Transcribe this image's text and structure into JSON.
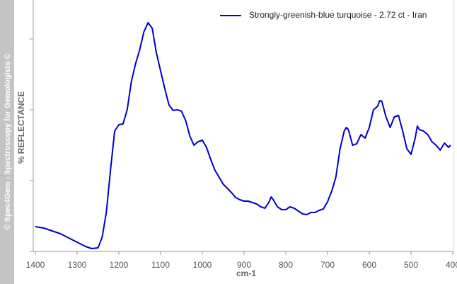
{
  "watermark": "© Spec4Gem - Spectroscopy for Gemologists ©",
  "chart_data": {
    "type": "line",
    "y_label": "% REFLECTANCE",
    "x_label": "cm-1",
    "xlim": [
      1400,
      400
    ],
    "xticks": [
      1400,
      1300,
      1200,
      1100,
      1000,
      900,
      800,
      700,
      600,
      500,
      400
    ],
    "ylim": [
      0,
      3.55
    ],
    "legend": "top-right",
    "x": [
      1400,
      1380,
      1360,
      1340,
      1320,
      1300,
      1280,
      1265,
      1250,
      1240,
      1230,
      1220,
      1210,
      1200,
      1190,
      1180,
      1170,
      1160,
      1150,
      1140,
      1130,
      1120,
      1110,
      1100,
      1090,
      1080,
      1070,
      1060,
      1050,
      1040,
      1030,
      1020,
      1010,
      1000,
      990,
      980,
      970,
      960,
      950,
      940,
      930,
      920,
      910,
      900,
      890,
      880,
      870,
      860,
      850,
      840,
      835,
      830,
      820,
      810,
      800,
      790,
      780,
      770,
      760,
      750,
      740,
      730,
      720,
      710,
      700,
      690,
      680,
      670,
      660,
      655,
      650,
      640,
      630,
      620,
      610,
      600,
      590,
      580,
      575,
      570,
      560,
      550,
      540,
      530,
      520,
      510,
      500,
      490,
      485,
      480,
      470,
      460,
      450,
      440,
      430,
      420,
      410,
      405
    ],
    "series": [
      {
        "name": "Strongly-greenish-blue turquoise - 2.72 ct - Iran",
        "color": "#0000cc",
        "values": [
          0.35,
          0.33,
          0.29,
          0.25,
          0.19,
          0.13,
          0.07,
          0.04,
          0.05,
          0.2,
          0.55,
          1.15,
          1.7,
          1.79,
          1.8,
          2.0,
          2.4,
          2.65,
          2.85,
          3.1,
          3.23,
          3.15,
          2.8,
          2.55,
          2.3,
          2.07,
          1.99,
          2.0,
          1.98,
          1.85,
          1.63,
          1.5,
          1.55,
          1.57,
          1.47,
          1.3,
          1.15,
          1.05,
          0.95,
          0.89,
          0.83,
          0.76,
          0.73,
          0.71,
          0.71,
          0.69,
          0.67,
          0.63,
          0.61,
          0.7,
          0.77,
          0.73,
          0.63,
          0.59,
          0.59,
          0.63,
          0.61,
          0.57,
          0.53,
          0.52,
          0.55,
          0.55,
          0.58,
          0.6,
          0.7,
          0.85,
          1.05,
          1.45,
          1.7,
          1.75,
          1.72,
          1.5,
          1.52,
          1.65,
          1.6,
          1.75,
          2.0,
          2.05,
          2.13,
          2.12,
          1.9,
          1.75,
          1.9,
          1.92,
          1.7,
          1.45,
          1.37,
          1.6,
          1.77,
          1.72,
          1.7,
          1.65,
          1.55,
          1.5,
          1.43,
          1.53,
          1.47,
          1.5
        ]
      }
    ]
  }
}
